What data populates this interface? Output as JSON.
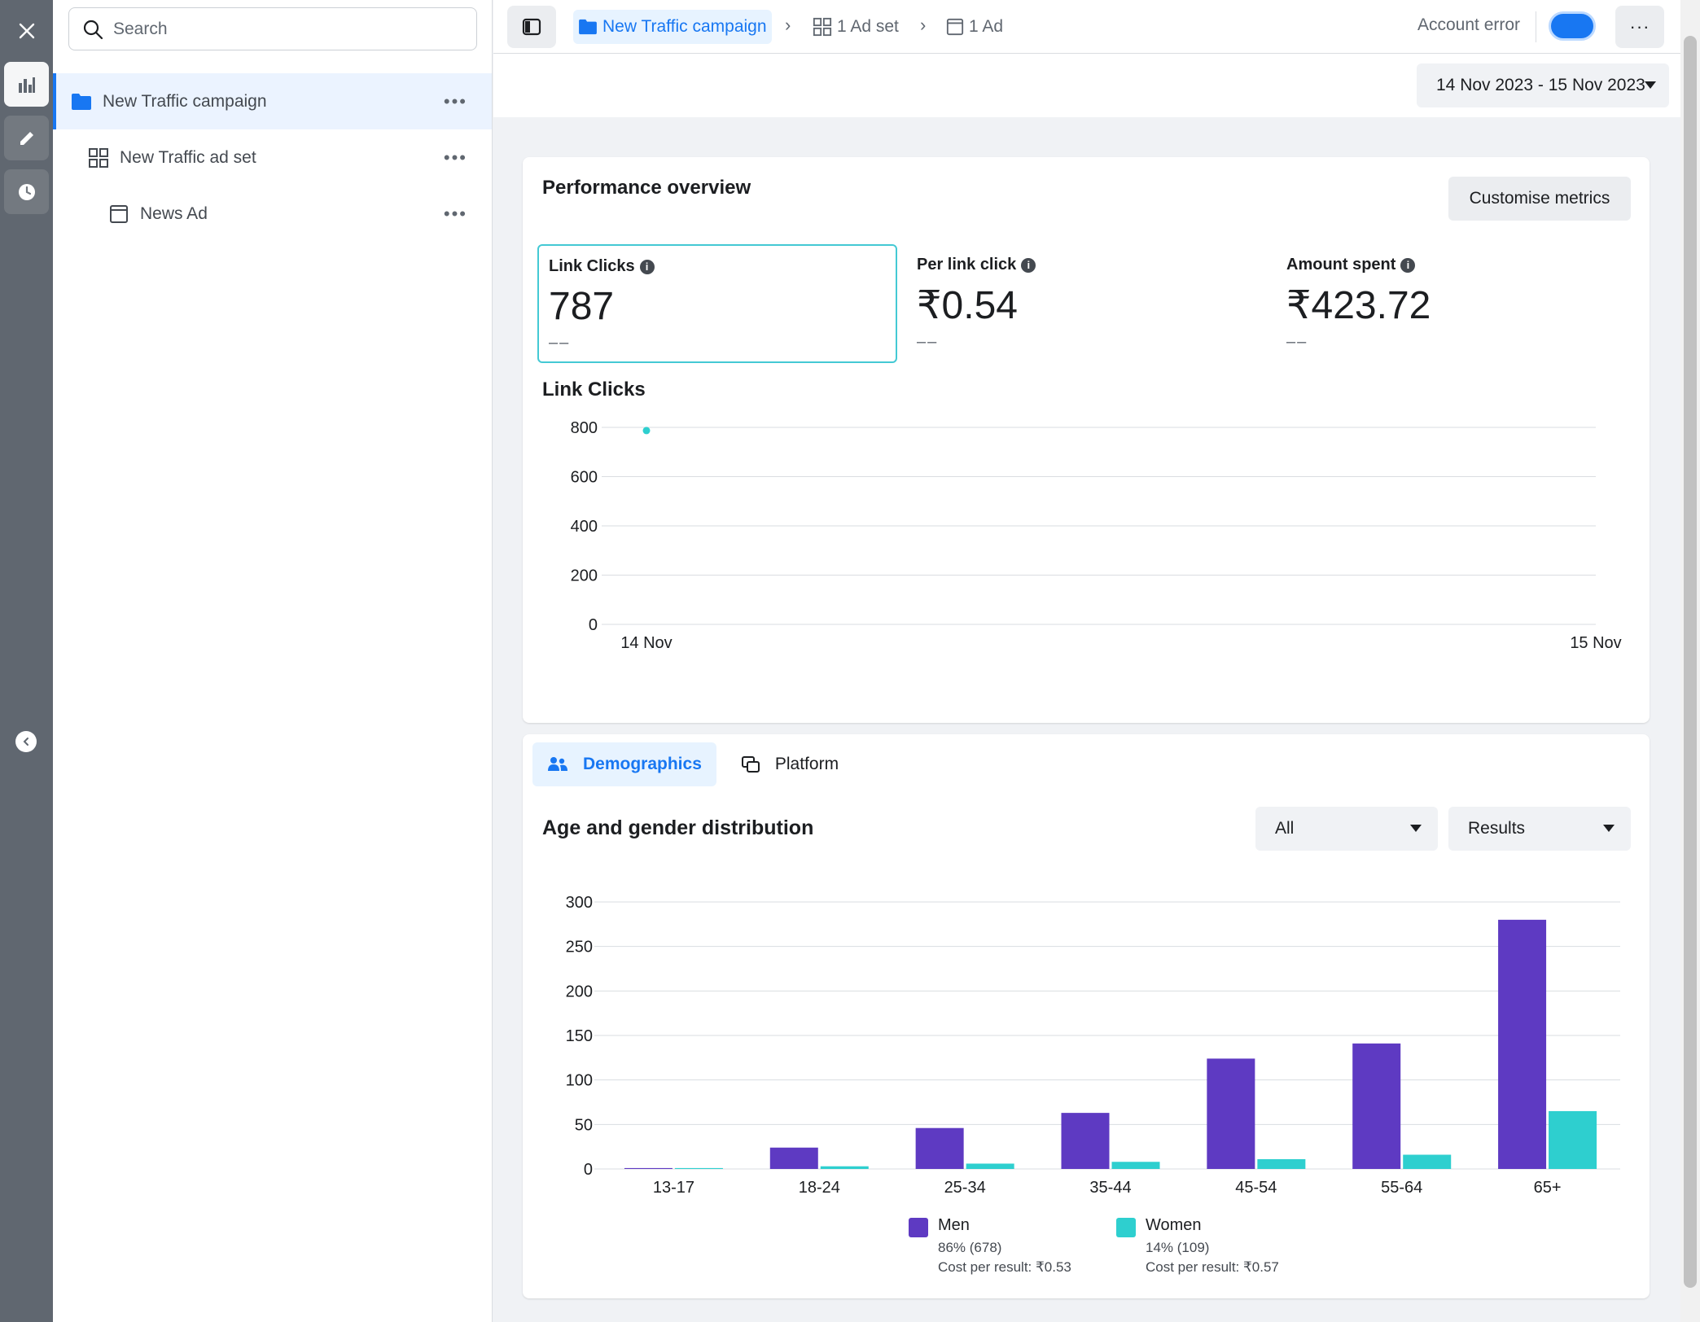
{
  "search": {
    "placeholder": "Search"
  },
  "tree": {
    "items": [
      {
        "label": "New Traffic campaign",
        "more": "•••"
      },
      {
        "label": "New Traffic ad set",
        "more": "•••"
      },
      {
        "label": "News Ad",
        "more": "•••"
      }
    ]
  },
  "breadcrumb": {
    "campaign": "New Traffic campaign",
    "adset": "1 Ad set",
    "ad": "1 Ad"
  },
  "header": {
    "account_status": "Account error",
    "more": "···",
    "date_range": "14 Nov 2023 - 15 Nov 2023"
  },
  "performance": {
    "title": "Performance overview",
    "customise_label": "Customise metrics",
    "metrics": [
      {
        "label": "Link Clicks",
        "value": "787",
        "delta": "––"
      },
      {
        "label": "Per link click",
        "value": "₹0.54",
        "delta": "––"
      },
      {
        "label": "Amount spent",
        "value": "₹423.72",
        "delta": "––"
      }
    ],
    "chart_title": "Link Clicks"
  },
  "breakdown": {
    "tabs": [
      "Demographics",
      "Platform"
    ],
    "title": "Age and gender distribution",
    "filter_all": "All",
    "filter_results": "Results"
  },
  "chart_data": [
    {
      "type": "line",
      "title": "Link Clicks",
      "x": [
        "14 Nov",
        "15 Nov"
      ],
      "series": [
        {
          "values": [
            787,
            null
          ]
        }
      ],
      "yticks": [
        "0",
        "200",
        "400",
        "600",
        "800"
      ],
      "ylim": [
        0,
        800
      ],
      "grid": true,
      "color": "#2ecfcf"
    },
    {
      "type": "bar",
      "title": "Age and gender distribution",
      "categories": [
        "13-17",
        "18-24",
        "25-34",
        "35-44",
        "45-54",
        "55-64",
        "65+"
      ],
      "series": [
        {
          "name": "Men",
          "values": [
            1,
            24,
            46,
            63,
            124,
            141,
            280
          ],
          "color": "#5e3ac2"
        },
        {
          "name": "Women",
          "values": [
            1,
            3,
            6,
            8,
            11,
            16,
            65
          ],
          "color": "#2ecfcf"
        }
      ],
      "yticks": [
        "0",
        "50",
        "100",
        "150",
        "200",
        "250",
        "300"
      ],
      "ylim": [
        0,
        300
      ],
      "grid": true,
      "legend_position": "bottom",
      "legend": [
        {
          "name": "Men",
          "share": "86% (678)",
          "cost": "Cost per result: ₹0.53"
        },
        {
          "name": "Women",
          "share": "14% (109)",
          "cost": "Cost per result: ₹0.57"
        }
      ]
    }
  ]
}
